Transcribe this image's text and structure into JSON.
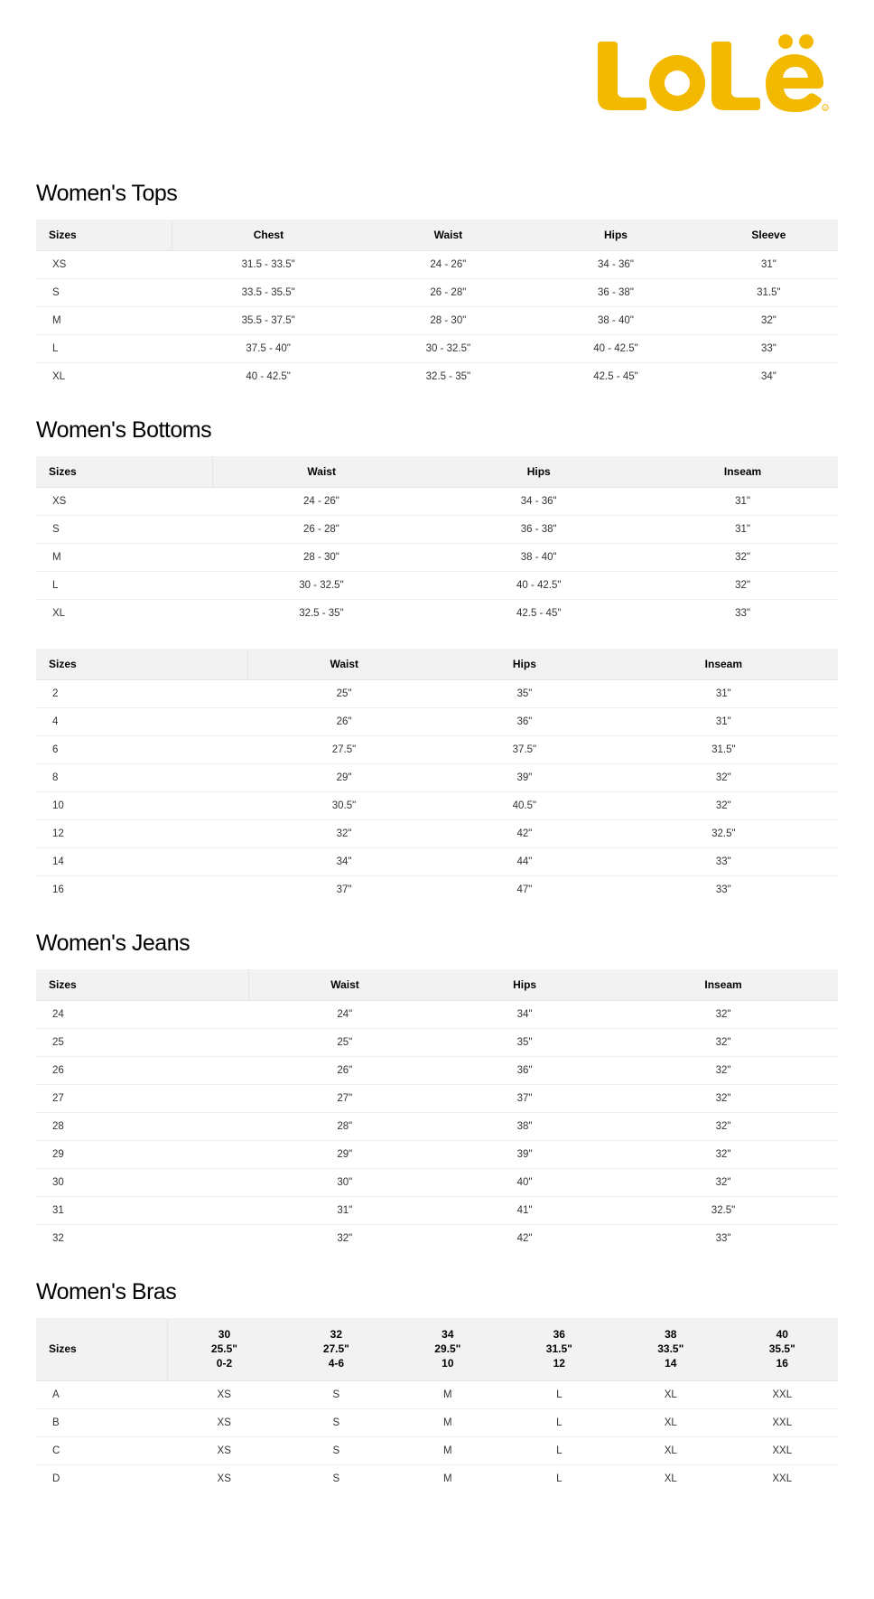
{
  "brand": {
    "name": "Lolë",
    "logo_color": "#f2b900",
    "background": "#ffffff"
  },
  "sections": [
    {
      "title": "Women's Tops",
      "tables": [
        {
          "columns": [
            "Sizes",
            "Chest",
            "Waist",
            "Hips",
            "Sleeve"
          ],
          "rows": [
            [
              "XS",
              "31.5 - 33.5\"",
              "24 - 26\"",
              "34 - 36\"",
              "31\""
            ],
            [
              "S",
              "33.5 - 35.5\"",
              "26 - 28\"",
              "36 - 38\"",
              "31.5\""
            ],
            [
              "M",
              "35.5 - 37.5\"",
              "28 - 30\"",
              "38 - 40\"",
              "32\""
            ],
            [
              "L",
              "37.5 - 40\"",
              "30 - 32.5\"",
              "40 - 42.5\"",
              "33\""
            ],
            [
              "XL",
              "40 - 42.5\"",
              "32.5 - 35\"",
              "42.5 - 45\"",
              "34\""
            ]
          ]
        }
      ]
    },
    {
      "title": "Women's Bottoms",
      "tables": [
        {
          "columns": [
            "Sizes",
            "Waist",
            "Hips",
            "Inseam"
          ],
          "rows": [
            [
              "XS",
              "24 - 26\"",
              "34 - 36\"",
              "31\""
            ],
            [
              "S",
              "26 - 28\"",
              "36 - 38\"",
              "31\""
            ],
            [
              "M",
              "28 - 30\"",
              "38 - 40\"",
              "32\""
            ],
            [
              "L",
              "30 - 32.5\"",
              "40 - 42.5\"",
              "32\""
            ],
            [
              "XL",
              "32.5 - 35\"",
              "42.5 - 45\"",
              "33\""
            ]
          ]
        },
        {
          "columns": [
            "Sizes",
            "Waist",
            "Hips",
            "Inseam"
          ],
          "rows": [
            [
              "2",
              "25\"",
              "35\"",
              "31\""
            ],
            [
              "4",
              "26\"",
              "36\"",
              "31\""
            ],
            [
              "6",
              "27.5\"",
              "37.5\"",
              "31.5\""
            ],
            [
              "8",
              "29\"",
              "39\"",
              "32\""
            ],
            [
              "10",
              "30.5\"",
              "40.5\"",
              "32\""
            ],
            [
              "12",
              "32\"",
              "42\"",
              "32.5\""
            ],
            [
              "14",
              "34\"",
              "44\"",
              "33\""
            ],
            [
              "16",
              "37\"",
              "47\"",
              "33\""
            ]
          ]
        }
      ]
    },
    {
      "title": "Women's Jeans",
      "tables": [
        {
          "columns": [
            "Sizes",
            "Waist",
            "Hips",
            "Inseam"
          ],
          "rows": [
            [
              "24",
              "24\"",
              "34\"",
              "32\""
            ],
            [
              "25",
              "25\"",
              "35\"",
              "32\""
            ],
            [
              "26",
              "26\"",
              "36\"",
              "32\""
            ],
            [
              "27",
              "27\"",
              "37\"",
              "32\""
            ],
            [
              "28",
              "28\"",
              "38\"",
              "32\""
            ],
            [
              "29",
              "29\"",
              "39\"",
              "32\""
            ],
            [
              "30",
              "30\"",
              "40\"",
              "32\""
            ],
            [
              "31",
              "31\"",
              "41\"",
              "32.5\""
            ],
            [
              "32",
              "32\"",
              "42\"",
              "33\""
            ]
          ]
        }
      ]
    },
    {
      "title": "Women's Bras",
      "tables": [
        {
          "columns_multiline": [
            [
              "Sizes"
            ],
            [
              "30",
              "25.5\"",
              "0-2"
            ],
            [
              "32",
              "27.5\"",
              "4-6"
            ],
            [
              "34",
              "29.5\"",
              "10"
            ],
            [
              "36",
              "31.5\"",
              "12"
            ],
            [
              "38",
              "33.5\"",
              "14"
            ],
            [
              "40",
              "35.5\"",
              "16"
            ]
          ],
          "rows": [
            [
              "A",
              "XS",
              "S",
              "M",
              "L",
              "XL",
              "XXL"
            ],
            [
              "B",
              "XS",
              "S",
              "M",
              "L",
              "XL",
              "XXL"
            ],
            [
              "C",
              "XS",
              "S",
              "M",
              "L",
              "XL",
              "XXL"
            ],
            [
              "D",
              "XS",
              "S",
              "M",
              "L",
              "XL",
              "XXL"
            ]
          ]
        }
      ]
    }
  ],
  "style": {
    "heading_color": "#000000",
    "header_bg": "#f2f2f2",
    "row_border": "#f0f0f0",
    "header_border": "#e5e5e5",
    "text_color": "#333333",
    "heading_fontsize": 25,
    "body_fontsize": 12
  }
}
